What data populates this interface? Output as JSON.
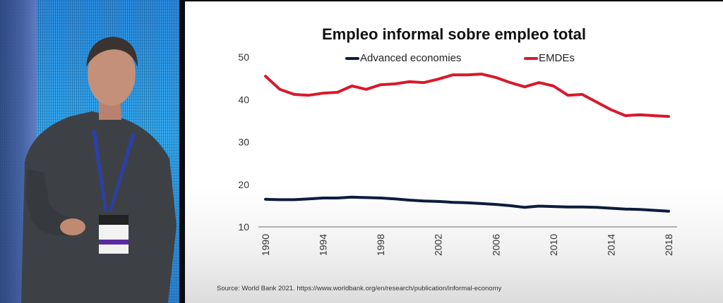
{
  "chart_data": {
    "type": "line",
    "title": "Empleo informal sobre empleo total",
    "xlabel": "",
    "ylabel": "",
    "ylim": [
      10,
      50
    ],
    "xlim": [
      1990,
      2018
    ],
    "yticks": [
      "10",
      "20",
      "30",
      "40",
      "50"
    ],
    "xticks": [
      "1990",
      "1994",
      "1998",
      "2002",
      "2006",
      "2010",
      "2014",
      "2018"
    ],
    "grid": false,
    "legend_position": "top",
    "x": [
      1990,
      1991,
      1992,
      1993,
      1994,
      1995,
      1996,
      1997,
      1998,
      1999,
      2000,
      2001,
      2002,
      2003,
      2004,
      2005,
      2006,
      2007,
      2008,
      2009,
      2010,
      2011,
      2012,
      2013,
      2014,
      2015,
      2016,
      2017,
      2018
    ],
    "series": [
      {
        "name": "Advanced economies",
        "color": "#0d1b3e",
        "values": [
          16.5,
          16.4,
          16.4,
          16.6,
          16.8,
          16.8,
          17.0,
          16.9,
          16.8,
          16.6,
          16.3,
          16.1,
          16.0,
          15.8,
          15.7,
          15.5,
          15.3,
          15.0,
          14.6,
          14.9,
          14.8,
          14.7,
          14.7,
          14.6,
          14.4,
          14.2,
          14.1,
          13.9,
          13.7
        ]
      },
      {
        "name": "EMDEs",
        "color": "#d8192b",
        "values": [
          45.5,
          42.4,
          41.2,
          41.0,
          41.5,
          41.7,
          43.2,
          42.4,
          43.5,
          43.7,
          44.2,
          44.0,
          44.8,
          45.8,
          45.8,
          46.0,
          45.2,
          44.0,
          43.0,
          44.0,
          43.2,
          41.0,
          41.2,
          39.4,
          37.6,
          36.2,
          36.4,
          36.2,
          36.0
        ]
      }
    ],
    "source": "Source: World Bank 2021. https://www.worldbank.org/en/research/publication/informal-economy"
  },
  "video": {
    "description_icon": "presenter-video"
  }
}
